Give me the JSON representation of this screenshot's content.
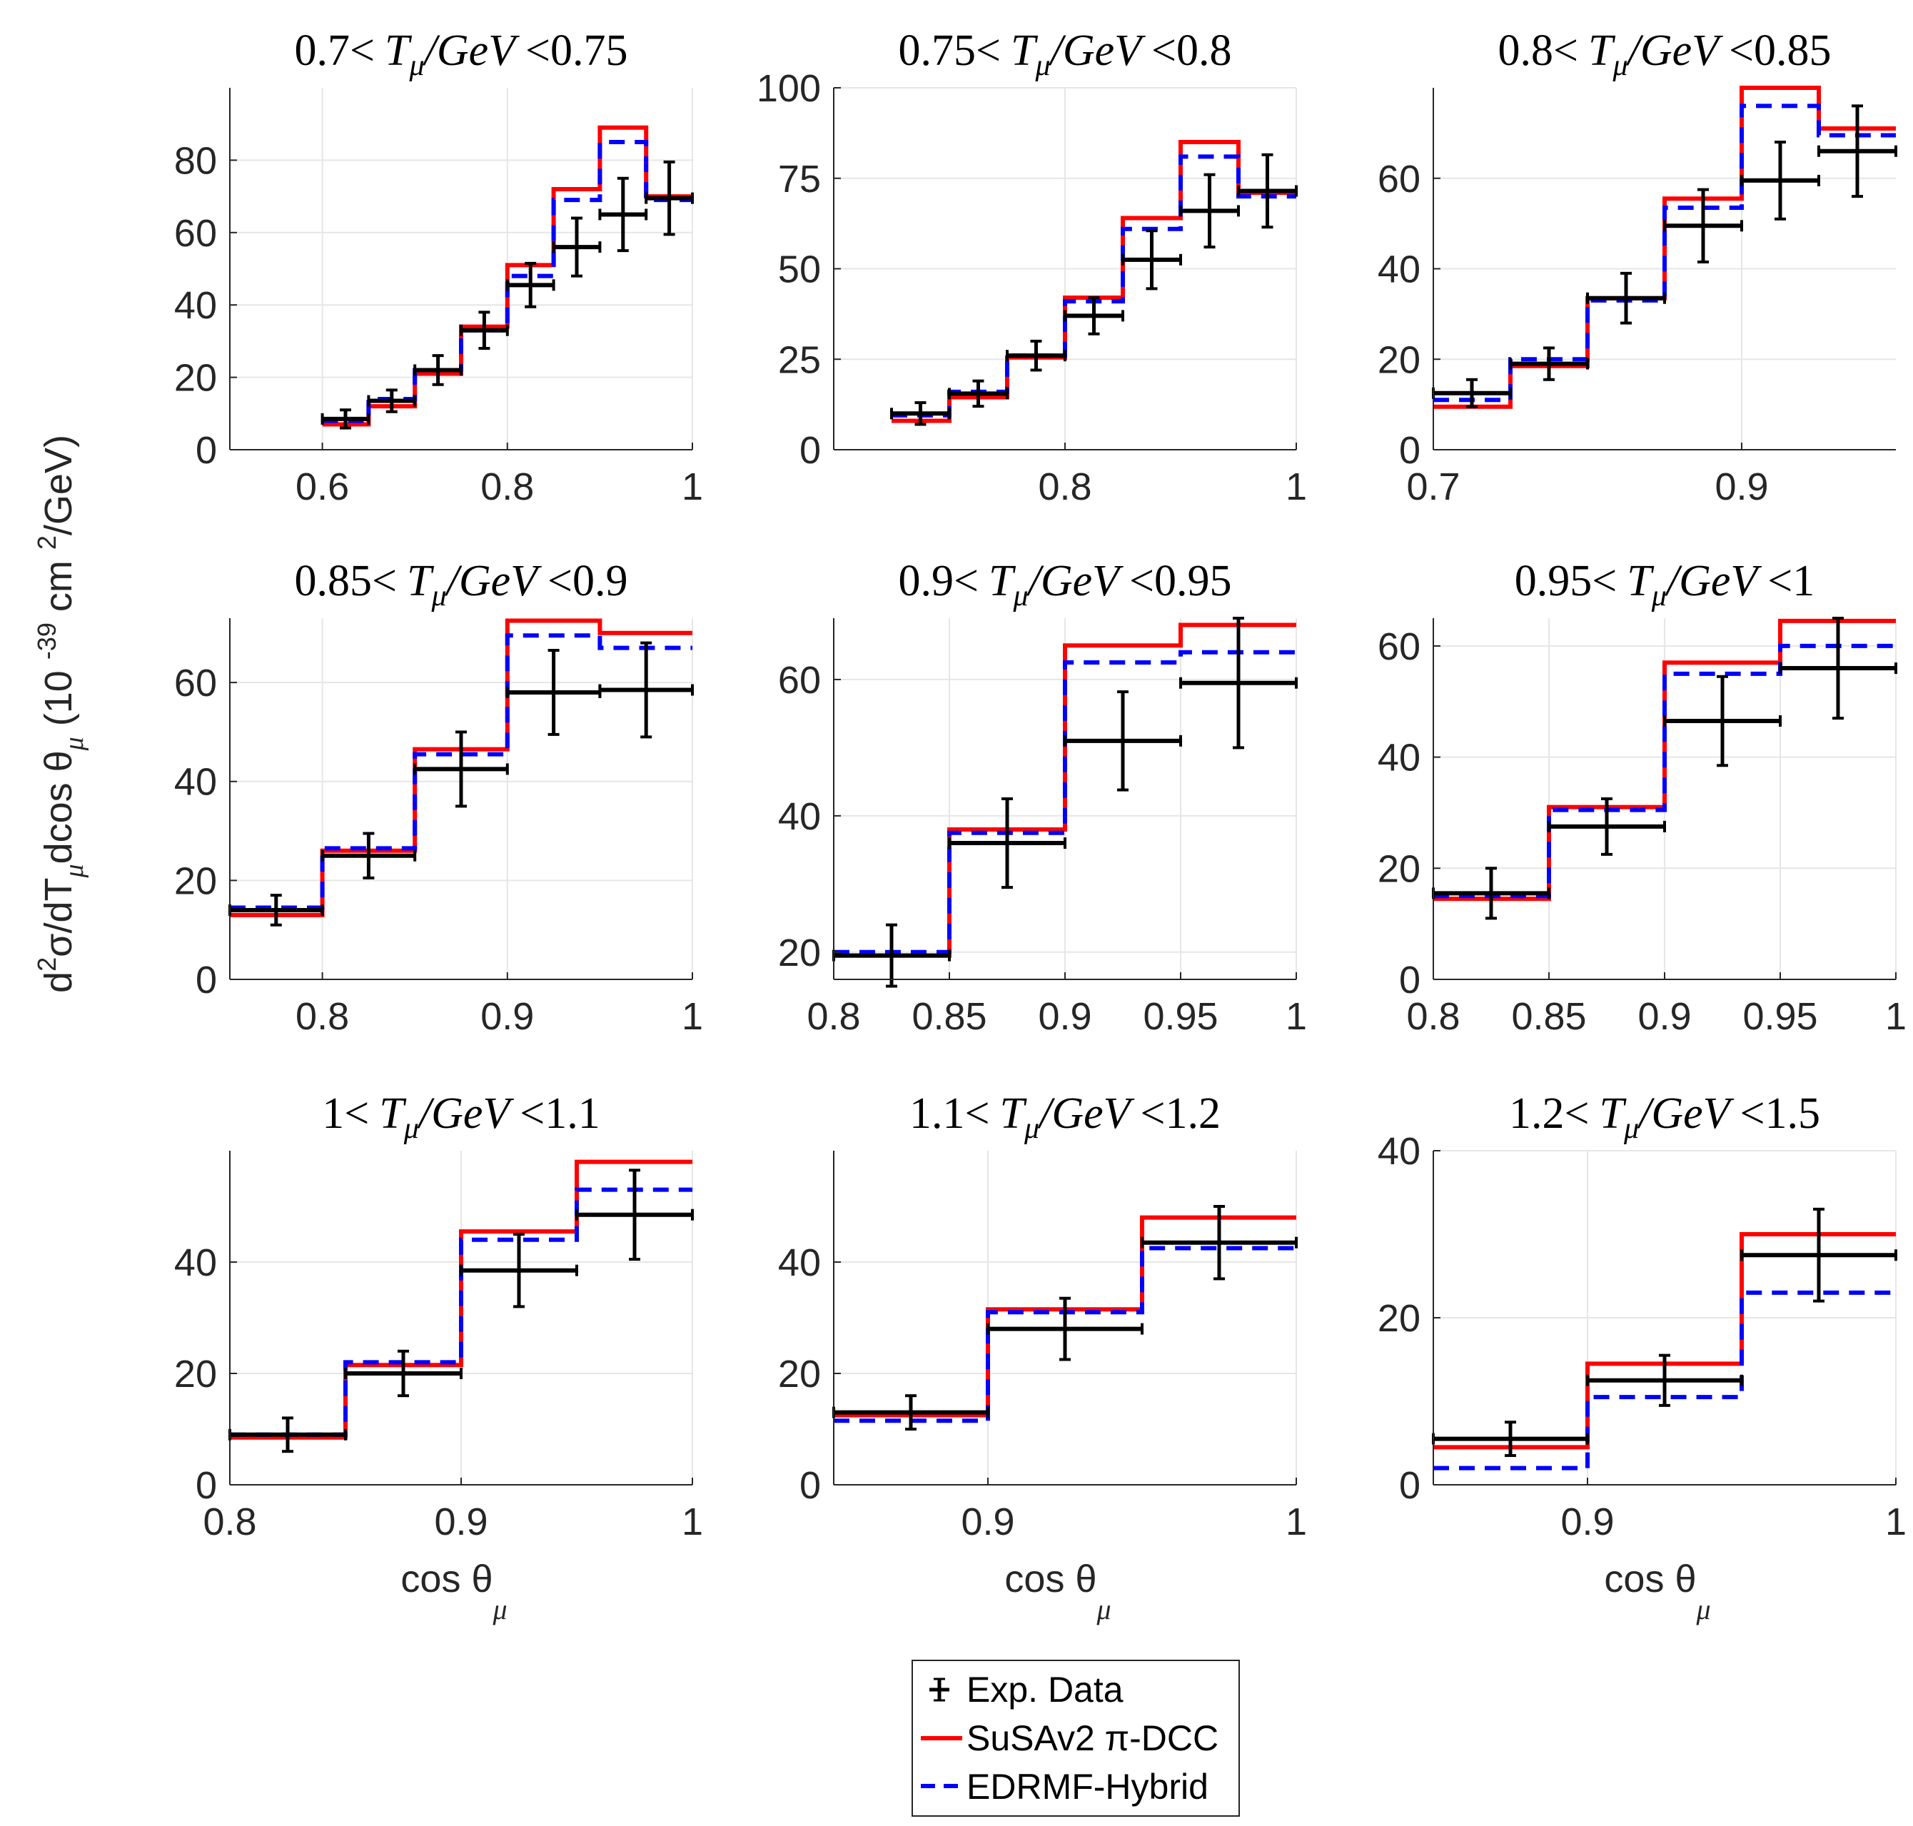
{
  "figure": {
    "ylabel_parts": [
      "d",
      "2",
      "σ/dT",
      "μ",
      "dcos θ",
      "μ",
      " (10 ",
      "-39",
      " cm ",
      "2",
      "/GeV)"
    ],
    "xlabel_main": "cos  θ",
    "xlabel_sub": "μ"
  },
  "legend": {
    "entries": [
      {
        "label": "Exp. Data",
        "style": "data",
        "color": "#000000"
      },
      {
        "label": "SuSAv2  π-DCC",
        "style": "solid",
        "color": "#ff0000"
      },
      {
        "label": "EDRMF-Hybrid",
        "style": "dashed",
        "color": "#0000ff"
      }
    ]
  },
  "chart_data": [
    {
      "type": "step",
      "title": {
        "low": "0.7<",
        "var": "T",
        "sub": "μ",
        "unit": "/GeV",
        "high": "<0.75"
      },
      "xlim": [
        0.5,
        1.0
      ],
      "ylim": [
        0,
        100
      ],
      "xticks": [
        0.6,
        0.8,
        1
      ],
      "xticklabels": [
        "0.6",
        "0.8",
        "1"
      ],
      "yticks": [
        0,
        20,
        40,
        60,
        80
      ],
      "yticklabels": [
        "0",
        "20",
        "40",
        "60",
        "80"
      ],
      "bins": [
        0.6,
        0.65,
        0.7,
        0.75,
        0.8,
        0.85,
        0.9,
        0.95,
        1.0
      ],
      "susav2": [
        7,
        12,
        21,
        34,
        51,
        72,
        89,
        70
      ],
      "edrmf": [
        8,
        14,
        22,
        33,
        48,
        69,
        85,
        69
      ],
      "data": [
        8.5,
        13.5,
        22,
        33,
        45.5,
        56,
        65,
        69.5
      ],
      "errors": [
        2.5,
        3,
        4,
        5,
        6,
        8,
        10,
        10
      ],
      "show_xlabel": false
    },
    {
      "type": "step",
      "title": {
        "low": "0.75<",
        "var": "T",
        "sub": "μ",
        "unit": "/GeV",
        "high": "<0.8"
      },
      "xlim": [
        0.6,
        1.0
      ],
      "ylim": [
        0,
        100
      ],
      "xticks": [
        0.8,
        1
      ],
      "xticklabels": [
        "0.8",
        "1"
      ],
      "yticks": [
        0,
        25,
        50,
        75,
        100
      ],
      "yticklabels": [
        "0",
        "25",
        "50",
        "75",
        "100"
      ],
      "bins": [
        0.65,
        0.7,
        0.75,
        0.8,
        0.85,
        0.9,
        0.95,
        1.0
      ],
      "susav2": [
        8,
        14.5,
        25.5,
        42,
        64,
        85,
        71
      ],
      "edrmf": [
        9.5,
        16,
        26,
        41,
        61,
        81,
        70
      ],
      "data": [
        10,
        15.5,
        26,
        37,
        52.5,
        66,
        71.5
      ],
      "errors": [
        3,
        3.5,
        4,
        5,
        8,
        10,
        10
      ],
      "show_xlabel": false
    },
    {
      "type": "step",
      "title": {
        "low": "0.8<",
        "var": "T",
        "sub": "μ",
        "unit": "/GeV",
        "high": "<0.85"
      },
      "xlim": [
        0.7,
        1.0
      ],
      "ylim": [
        0,
        80
      ],
      "xticks": [
        0.7,
        0.9
      ],
      "xticklabels": [
        "0.7",
        "0.9"
      ],
      "yticks": [
        0,
        20,
        40,
        60
      ],
      "yticklabels": [
        "0",
        "20",
        "40",
        "60"
      ],
      "bins": [
        0.7,
        0.75,
        0.8,
        0.85,
        0.9,
        0.95,
        1.0
      ],
      "susav2": [
        9.5,
        18.5,
        33.5,
        55.5,
        80,
        71
      ],
      "edrmf": [
        11,
        20,
        33,
        53.5,
        76,
        69.5
      ],
      "data": [
        12.5,
        19,
        33.5,
        49.5,
        59.5,
        66
      ],
      "errors": [
        3,
        3.5,
        5.5,
        8,
        8.5,
        10
      ],
      "show_xlabel": false
    },
    {
      "type": "step",
      "title": {
        "low": "0.85<",
        "var": "T",
        "sub": "μ",
        "unit": "/GeV",
        "high": "<0.9"
      },
      "xlim": [
        0.75,
        1.0
      ],
      "ylim": [
        0,
        73
      ],
      "xticks": [
        0.8,
        0.9,
        1
      ],
      "xticklabels": [
        "0.8",
        "0.9",
        "1"
      ],
      "yticks": [
        0,
        20,
        40,
        60
      ],
      "yticklabels": [
        "0",
        "20",
        "40",
        "60"
      ],
      "bins": [
        0.75,
        0.8,
        0.85,
        0.9,
        0.95,
        1.0
      ],
      "susav2": [
        13,
        26,
        46.5,
        72.5,
        70
      ],
      "edrmf": [
        14.5,
        26.5,
        45.5,
        69.5,
        67
      ],
      "data": [
        14,
        25,
        42.5,
        58,
        58.5
      ],
      "errors": [
        3,
        4.5,
        7.5,
        8.5,
        9.5
      ],
      "show_xlabel": false
    },
    {
      "type": "step",
      "title": {
        "low": "0.9<",
        "var": "T",
        "sub": "μ",
        "unit": "/GeV",
        "high": "<0.95"
      },
      "xlim": [
        0.8,
        1.0
      ],
      "ylim": [
        16,
        69
      ],
      "xticks": [
        0.8,
        0.85,
        0.9,
        0.95,
        1
      ],
      "xticklabels": [
        "0.8",
        "0.85",
        "0.9",
        "0.95",
        "1"
      ],
      "yticks": [
        20,
        40,
        60
      ],
      "yticklabels": [
        "20",
        "40",
        "60"
      ],
      "bins": [
        0.8,
        0.85,
        0.9,
        0.95,
        1.0
      ],
      "susav2": [
        19.5,
        38,
        65,
        68
      ],
      "edrmf": [
        20,
        37.5,
        62.5,
        64
      ],
      "data": [
        19.5,
        36,
        51,
        59.5
      ],
      "errors": [
        4.5,
        6.5,
        7.2,
        9.5
      ],
      "show_xlabel": false
    },
    {
      "type": "step",
      "title": {
        "low": "0.95<",
        "var": "T",
        "sub": "μ",
        "unit": "/GeV",
        "high": "<1"
      },
      "xlim": [
        0.8,
        1.0
      ],
      "ylim": [
        0,
        65
      ],
      "xticks": [
        0.8,
        0.85,
        0.9,
        0.95,
        1
      ],
      "xticklabels": [
        "0.8",
        "0.85",
        "0.9",
        "0.95",
        "1"
      ],
      "yticks": [
        0,
        20,
        40,
        60
      ],
      "yticklabels": [
        "0",
        "20",
        "40",
        "60"
      ],
      "bins": [
        0.8,
        0.85,
        0.9,
        0.95,
        1.0
      ],
      "susav2": [
        14.5,
        31,
        57,
        64.5
      ],
      "edrmf": [
        15,
        30.5,
        55,
        60
      ],
      "data": [
        15.5,
        27.5,
        46.5,
        56
      ],
      "errors": [
        4.5,
        5,
        8,
        9
      ],
      "show_xlabel": false
    },
    {
      "type": "step",
      "title": {
        "low": "1<",
        "var": "T",
        "sub": "μ",
        "unit": "/GeV",
        "high": "<1.1"
      },
      "xlim": [
        0.8,
        1.0
      ],
      "ylim": [
        0,
        60
      ],
      "xticks": [
        0.8,
        0.9,
        1
      ],
      "xticklabels": [
        "0.8",
        "0.9",
        "1"
      ],
      "yticks": [
        0,
        20,
        40
      ],
      "yticklabels": [
        "0",
        "20",
        "40"
      ],
      "bins": [
        0.8,
        0.85,
        0.9,
        0.95,
        1.0
      ],
      "susav2": [
        8.5,
        21.5,
        45.5,
        58
      ],
      "edrmf": [
        9,
        22,
        44,
        53
      ],
      "data": [
        9,
        20,
        38.5,
        48.5
      ],
      "errors": [
        3,
        4,
        6.5,
        8
      ],
      "show_xlabel": true
    },
    {
      "type": "step",
      "title": {
        "low": "1.1<",
        "var": "T",
        "sub": "μ",
        "unit": "/GeV",
        "high": "<1.2"
      },
      "xlim": [
        0.85,
        1.0
      ],
      "ylim": [
        0,
        60
      ],
      "xticks": [
        0.9,
        1
      ],
      "xticklabels": [
        "0.9",
        "1"
      ],
      "yticks": [
        0,
        20,
        40
      ],
      "yticklabels": [
        "0",
        "20",
        "40"
      ],
      "bins": [
        0.85,
        0.9,
        0.95,
        1.0
      ],
      "susav2": [
        12.5,
        31.5,
        48
      ],
      "edrmf": [
        11.5,
        31,
        42.5
      ],
      "data": [
        13,
        28,
        43.5
      ],
      "errors": [
        3,
        5.5,
        6.5
      ],
      "show_xlabel": true
    },
    {
      "type": "step",
      "title": {
        "low": "1.2<",
        "var": "T",
        "sub": "μ",
        "unit": "/GeV",
        "high": "<1.5"
      },
      "xlim": [
        0.85,
        1.0
      ],
      "ylim": [
        0,
        40
      ],
      "xticks": [
        0.9,
        1
      ],
      "xticklabels": [
        "0.9",
        "1"
      ],
      "yticks": [
        0,
        20,
        40
      ],
      "yticklabels": [
        "0",
        "20",
        "40"
      ],
      "bins": [
        0.85,
        0.9,
        0.95,
        1.0
      ],
      "susav2": [
        4.5,
        14.5,
        30
      ],
      "edrmf": [
        2,
        10.5,
        23
      ],
      "data": [
        5.5,
        12.5,
        27.5
      ],
      "errors": [
        2,
        3,
        5.5
      ],
      "show_xlabel": true
    }
  ]
}
